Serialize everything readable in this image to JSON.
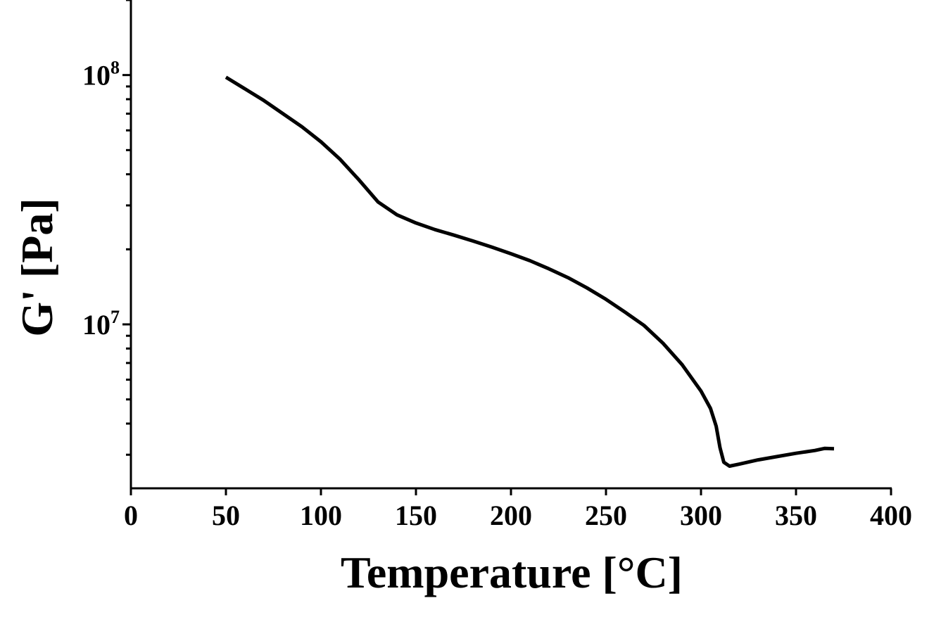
{
  "chart_data": {
    "type": "line",
    "xlabel": "Temperature [°C]",
    "ylabel": "G' [Pa]",
    "xlim": [
      0,
      400
    ],
    "ylim": [
      2200000,
      200000000
    ],
    "yscale": "log",
    "grid": false,
    "x_ticks": [
      "0",
      "50",
      "100",
      "150",
      "200",
      "250",
      "300",
      "350",
      "400"
    ],
    "y_ticks": [
      {
        "base": "10",
        "exp": "8",
        "value": 100000000
      },
      {
        "base": "10",
        "exp": "7",
        "value": 10000000
      }
    ],
    "series": [
      {
        "color": "#000000",
        "x": [
          50,
          60,
          70,
          80,
          90,
          100,
          110,
          120,
          130,
          140,
          150,
          160,
          170,
          180,
          190,
          200,
          210,
          220,
          230,
          240,
          250,
          260,
          270,
          280,
          290,
          300,
          305,
          308,
          310,
          312,
          315,
          320,
          330,
          340,
          350,
          360,
          365,
          370
        ],
        "y": [
          98000000,
          88000000,
          79000000,
          70000000,
          62000000,
          54000000,
          46000000,
          38000000,
          31000000,
          27500000,
          25500000,
          24000000,
          22800000,
          21600000,
          20400000,
          19200000,
          18000000,
          16700000,
          15400000,
          14000000,
          12600000,
          11200000,
          9900000,
          8400000,
          6900000,
          5400000,
          4600000,
          3900000,
          3200000,
          2800000,
          2700000,
          2750000,
          2860000,
          2950000,
          3040000,
          3120000,
          3180000,
          3170000
        ]
      }
    ]
  }
}
